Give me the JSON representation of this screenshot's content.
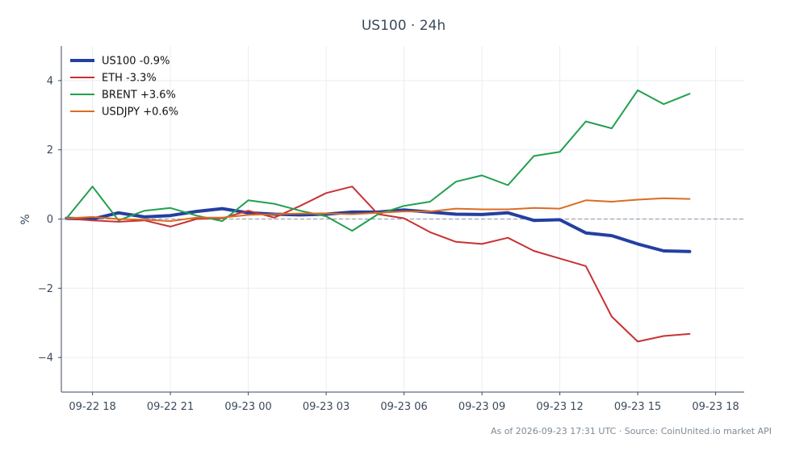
{
  "chart_data": {
    "type": "line",
    "title": "US100 · 24h",
    "ylabel": "%",
    "xlabel": "",
    "ylim": [
      -5,
      5
    ],
    "yticks": [
      -4,
      -2,
      0,
      2,
      4
    ],
    "ytick_labels": [
      "−4",
      "−2",
      "0",
      "2",
      "4"
    ],
    "xlim": [
      -1.2,
      25.1
    ],
    "xticks": [
      0,
      3,
      6,
      9,
      12,
      15,
      18,
      21,
      24
    ],
    "xtick_labels": [
      "09-22 18",
      "09-22 21",
      "09-23 00",
      "09-23 03",
      "09-23 06",
      "09-23 09",
      "09-23 12",
      "09-23 15",
      "09-23 18"
    ],
    "grid": true,
    "zero_line": true,
    "legend_position": "top-left",
    "x": [
      -1,
      0,
      1,
      2,
      3,
      4,
      5,
      6,
      7,
      8,
      9,
      10,
      11,
      12,
      13,
      14,
      15,
      16,
      17,
      18,
      19,
      20,
      21,
      22,
      23
    ],
    "series": [
      {
        "name": "US100 -0.9%",
        "color": "#2340a0",
        "width": 4,
        "values": [
          0.02,
          0.0,
          0.18,
          0.06,
          0.1,
          0.22,
          0.3,
          0.18,
          0.14,
          0.12,
          0.14,
          0.2,
          0.2,
          0.26,
          0.2,
          0.14,
          0.13,
          0.18,
          -0.04,
          -0.02,
          -0.4,
          -0.48,
          -0.72,
          -0.92,
          -0.94
        ]
      },
      {
        "name": "ETH -3.3%",
        "color": "#c83232",
        "width": 2,
        "values": [
          0.02,
          -0.04,
          -0.08,
          -0.04,
          -0.22,
          0.0,
          0.02,
          0.24,
          0.04,
          0.38,
          0.75,
          0.94,
          0.14,
          0.02,
          -0.38,
          -0.66,
          -0.72,
          -0.54,
          -0.92,
          -1.14,
          -1.36,
          -2.82,
          -3.54,
          -3.38,
          -3.32
        ]
      },
      {
        "name": "BRENT +3.6%",
        "color": "#22a04e",
        "width": 2,
        "values": [
          0.02,
          0.94,
          -0.04,
          0.24,
          0.32,
          0.1,
          -0.06,
          0.54,
          0.44,
          0.24,
          0.08,
          -0.34,
          0.14,
          0.38,
          0.5,
          1.08,
          1.26,
          0.98,
          1.82,
          1.94,
          2.82,
          2.62,
          3.72,
          3.32,
          3.62
        ]
      },
      {
        "name": "USDJPY +0.6%",
        "color": "#dc6c22",
        "width": 2,
        "values": [
          0.02,
          0.06,
          0.0,
          -0.02,
          -0.06,
          0.04,
          0.04,
          0.12,
          0.14,
          0.16,
          0.16,
          0.14,
          0.18,
          0.22,
          0.22,
          0.3,
          0.28,
          0.28,
          0.32,
          0.3,
          0.54,
          0.5,
          0.56,
          0.6,
          0.58
        ]
      }
    ],
    "footer": "As of 2026-09-23 17:31 UTC · Source: CoinUnited.io market API"
  }
}
